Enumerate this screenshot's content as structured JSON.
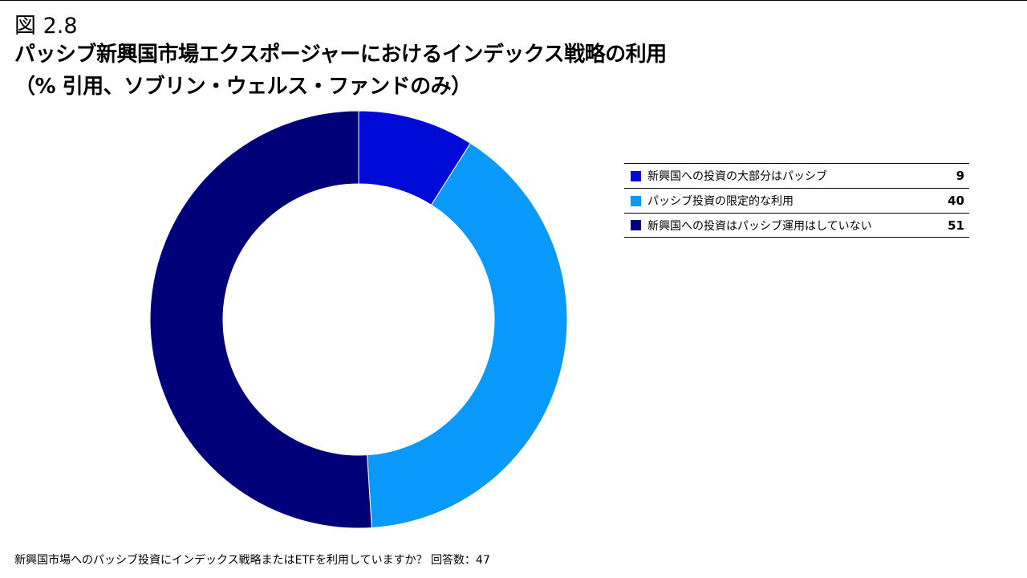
{
  "figure_number": "図 2.8",
  "title_line1": "パッシブ新興国市場エクスポージャーにおけるインデックス戦略の利用",
  "title_line2": "（% 引用、ソブリン・ウェルス・ファンドのみ）",
  "footnote": "新興国市場へのパッシブ投資にインデックス戦略またはETFを利用していますか？ 回答数：47",
  "chart_data": {
    "type": "pie",
    "donut": true,
    "legend_placement": "right",
    "series": [
      {
        "label": "新興国への投資の大部分はパッシブ",
        "value": 9,
        "color": "#000ad6"
      },
      {
        "label": "パッシブ投資の限定的な利用",
        "value": 40,
        "color": "#0899fa"
      },
      {
        "label": "新興国への投資はパッシブ運用はしていない",
        "value": 51,
        "color": "#000078"
      }
    ]
  }
}
